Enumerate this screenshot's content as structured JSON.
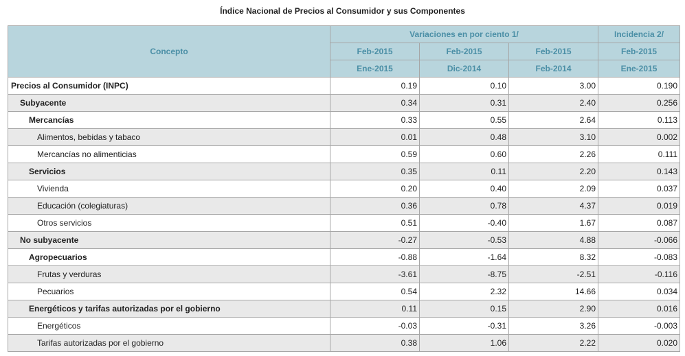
{
  "title": "Índice Nacional de Precios al Consumidor y sus Componentes",
  "header": {
    "concept": "Concepto",
    "variaciones": "Variaciones en por ciento 1/",
    "incidencia": "Incidencia 2/",
    "periods_top": [
      "Feb-2015",
      "Feb-2015",
      "Feb-2015",
      "Feb-2015"
    ],
    "periods_bottom": [
      "Ene-2015",
      "Dic-2014",
      "Feb-2014",
      "Ene-2015"
    ]
  },
  "rows": [
    {
      "label": "Precios al Consumidor (INPC)",
      "level": 0,
      "values": [
        "0.19",
        "0.10",
        "3.00",
        "0.190"
      ]
    },
    {
      "label": "Subyacente",
      "level": 1,
      "values": [
        "0.34",
        "0.31",
        "2.40",
        "0.256"
      ]
    },
    {
      "label": "Mercancías",
      "level": 2,
      "values": [
        "0.33",
        "0.55",
        "2.64",
        "0.113"
      ]
    },
    {
      "label": "Alimentos, bebidas y tabaco",
      "level": 3,
      "values": [
        "0.01",
        "0.48",
        "3.10",
        "0.002"
      ]
    },
    {
      "label": "Mercancías no alimenticias",
      "level": 3,
      "values": [
        "0.59",
        "0.60",
        "2.26",
        "0.111"
      ]
    },
    {
      "label": "Servicios",
      "level": 2,
      "values": [
        "0.35",
        "0.11",
        "2.20",
        "0.143"
      ]
    },
    {
      "label": "Vivienda",
      "level": 3,
      "values": [
        "0.20",
        "0.40",
        "2.09",
        "0.037"
      ]
    },
    {
      "label": "Educación (colegiaturas)",
      "level": 3,
      "values": [
        "0.36",
        "0.78",
        "4.37",
        "0.019"
      ]
    },
    {
      "label": "Otros servicios",
      "level": 3,
      "values": [
        "0.51",
        "-0.40",
        "1.67",
        "0.087"
      ]
    },
    {
      "label": "No subyacente",
      "level": 1,
      "values": [
        "-0.27",
        "-0.53",
        "4.88",
        "-0.066"
      ]
    },
    {
      "label": "Agropecuarios",
      "level": 2,
      "values": [
        "-0.88",
        "-1.64",
        "8.32",
        "-0.083"
      ]
    },
    {
      "label": "Frutas y verduras",
      "level": 3,
      "values": [
        "-3.61",
        "-8.75",
        "-2.51",
        "-0.116"
      ]
    },
    {
      "label": "Pecuarios",
      "level": 3,
      "values": [
        "0.54",
        "2.32",
        "14.66",
        "0.034"
      ]
    },
    {
      "label": "Energéticos y tarifas autorizadas por el gobierno",
      "level": 2,
      "values": [
        "0.11",
        "0.15",
        "2.90",
        "0.016"
      ]
    },
    {
      "label": "Energéticos",
      "level": 3,
      "values": [
        "-0.03",
        "-0.31",
        "3.26",
        "-0.003"
      ]
    },
    {
      "label": "Tarifas autorizadas por el gobierno",
      "level": 3,
      "values": [
        "0.38",
        "1.06",
        "2.22",
        "0.020"
      ]
    }
  ]
}
